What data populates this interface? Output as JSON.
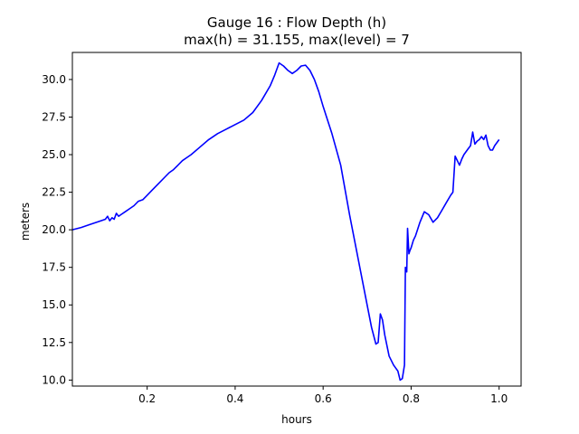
{
  "chart_data": {
    "type": "line",
    "title": "Gauge 16 : Flow Depth (h)",
    "subtitle": "max(h) =  31.155,    max(level) = 7",
    "xlabel": "hours",
    "ylabel": "meters",
    "xlim": [
      0.03,
      1.05
    ],
    "ylim": [
      9.6,
      31.8
    ],
    "xticks": [
      0.2,
      0.4,
      0.6,
      0.8,
      1.0
    ],
    "xtick_labels": [
      "0.2",
      "0.4",
      "0.6",
      "0.8",
      "1.0"
    ],
    "yticks": [
      10.0,
      12.5,
      15.0,
      17.5,
      20.0,
      22.5,
      25.0,
      27.5,
      30.0
    ],
    "ytick_labels": [
      "10.0",
      "12.5",
      "15.0",
      "17.5",
      "20.0",
      "22.5",
      "25.0",
      "27.5",
      "30.0"
    ],
    "grid": false,
    "series": [
      {
        "color": "#0000ff",
        "x": [
          0.03,
          0.05,
          0.07,
          0.09,
          0.105,
          0.11,
          0.115,
          0.12,
          0.125,
          0.13,
          0.135,
          0.14,
          0.15,
          0.16,
          0.17,
          0.18,
          0.19,
          0.2,
          0.21,
          0.22,
          0.23,
          0.24,
          0.25,
          0.26,
          0.27,
          0.28,
          0.29,
          0.3,
          0.32,
          0.34,
          0.36,
          0.38,
          0.4,
          0.42,
          0.44,
          0.46,
          0.48,
          0.49,
          0.5,
          0.51,
          0.52,
          0.53,
          0.54,
          0.55,
          0.56,
          0.57,
          0.58,
          0.59,
          0.6,
          0.62,
          0.64,
          0.66,
          0.68,
          0.7,
          0.71,
          0.72,
          0.725,
          0.73,
          0.735,
          0.74,
          0.75,
          0.76,
          0.765,
          0.77,
          0.775,
          0.78,
          0.785,
          0.787,
          0.79,
          0.792,
          0.795,
          0.797,
          0.8,
          0.805,
          0.81,
          0.82,
          0.83,
          0.84,
          0.85,
          0.86,
          0.87,
          0.88,
          0.89,
          0.895,
          0.9,
          0.91,
          0.915,
          0.92,
          0.93,
          0.935,
          0.94,
          0.945,
          0.95,
          0.955,
          0.96,
          0.965,
          0.97,
          0.975,
          0.98,
          0.985,
          0.99,
          1.0
        ],
        "y": [
          20.0,
          20.15,
          20.35,
          20.55,
          20.7,
          20.9,
          20.6,
          20.8,
          20.7,
          21.1,
          20.9,
          21.0,
          21.2,
          21.4,
          21.6,
          21.9,
          22.0,
          22.3,
          22.6,
          22.9,
          23.2,
          23.5,
          23.8,
          24.0,
          24.3,
          24.6,
          24.8,
          25.0,
          25.5,
          26.0,
          26.4,
          26.7,
          27.0,
          27.3,
          27.8,
          28.6,
          29.6,
          30.3,
          31.1,
          30.9,
          30.6,
          30.4,
          30.6,
          30.9,
          30.95,
          30.6,
          30.0,
          29.2,
          28.2,
          26.4,
          24.3,
          21.0,
          18.0,
          15.0,
          13.5,
          12.4,
          12.5,
          14.4,
          14.0,
          13.0,
          11.6,
          11.0,
          10.8,
          10.6,
          10.0,
          10.1,
          11.0,
          17.5,
          17.2,
          20.1,
          18.4,
          18.6,
          18.8,
          19.3,
          19.6,
          20.5,
          21.2,
          21.0,
          20.5,
          20.8,
          21.3,
          21.8,
          22.3,
          22.5,
          24.9,
          24.3,
          24.7,
          25.0,
          25.4,
          25.6,
          26.5,
          25.7,
          25.9,
          26.0,
          26.2,
          26.0,
          26.3,
          25.6,
          25.3,
          25.3,
          25.6,
          26.0
        ]
      }
    ]
  }
}
